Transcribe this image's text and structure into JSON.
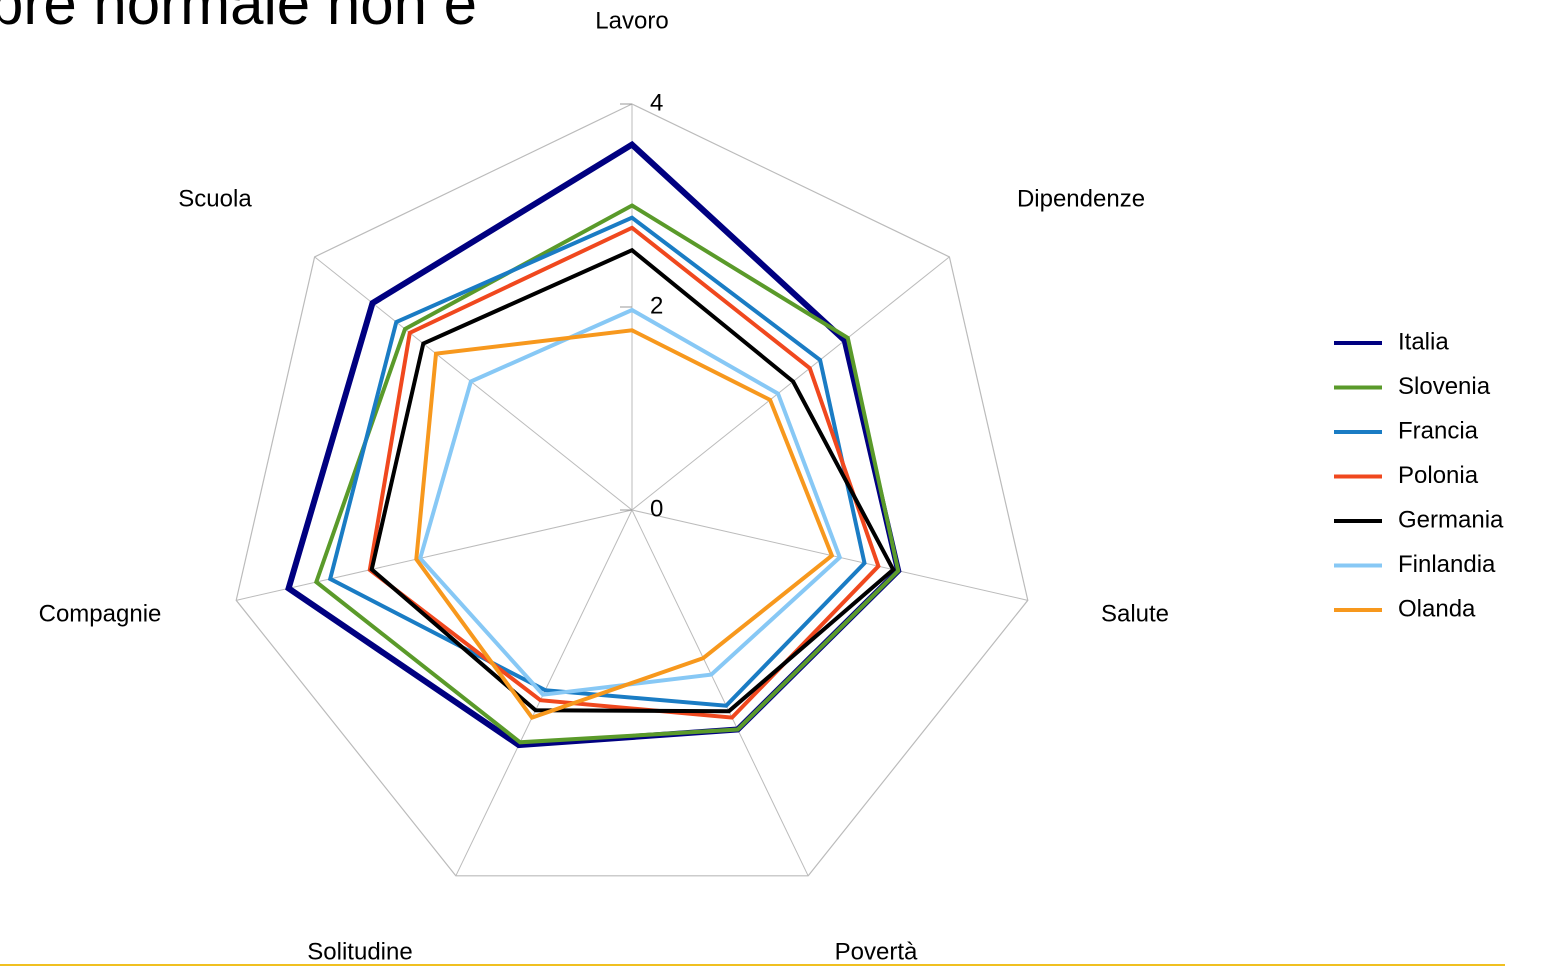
{
  "chart_data": {
    "type": "radar",
    "title": "pre normale non è",
    "categories": [
      "Lavoro",
      "Dipendenze",
      "Salute",
      "Povertà",
      "Solitudine",
      "Compagnie",
      "Scuola"
    ],
    "ylim": [
      0,
      4
    ],
    "yticks": [
      0,
      2,
      4
    ],
    "legend": "right",
    "series": [
      {
        "name": "Italia",
        "color": "#000080",
        "values": [
          3.6,
          2.68,
          2.69,
          2.4,
          2.57,
          3.47,
          3.27
        ]
      },
      {
        "name": "Slovenia",
        "color": "#5a9a2a",
        "values": [
          3.0,
          2.72,
          2.69,
          2.4,
          2.54,
          3.19,
          2.86
        ]
      },
      {
        "name": "Francia",
        "color": "#1a7cc4",
        "values": [
          2.88,
          2.37,
          2.35,
          2.14,
          1.97,
          3.05,
          2.97
        ]
      },
      {
        "name": "Polonia",
        "color": "#f0481e",
        "values": [
          2.78,
          2.24,
          2.49,
          2.27,
          2.08,
          2.65,
          2.8
        ]
      },
      {
        "name": "Germania",
        "color": "#000000",
        "values": [
          2.56,
          2.03,
          2.64,
          2.2,
          2.19,
          2.63,
          2.63
        ]
      },
      {
        "name": "Finlandia",
        "color": "#87c8f5",
        "values": [
          1.97,
          1.84,
          2.1,
          1.8,
          2.02,
          2.14,
          2.03
        ]
      },
      {
        "name": "Olanda",
        "color": "#f7981d",
        "values": [
          1.77,
          1.74,
          2.02,
          1.62,
          2.27,
          2.18,
          2.47
        ]
      }
    ]
  }
}
